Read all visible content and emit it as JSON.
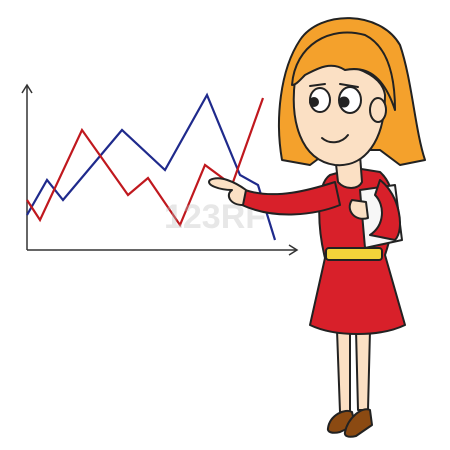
{
  "chart_data": {
    "type": "line",
    "xlim": [
      0,
      270
    ],
    "ylim": [
      0,
      165
    ],
    "series": [
      {
        "color": "#1f2a8c",
        "x": [
          0,
          20,
          36,
          95,
          138,
          180,
          213,
          231,
          248
        ],
        "values": [
          35,
          70,
          50,
          120,
          80,
          155,
          75,
          65,
          10
        ]
      },
      {
        "color": "#c0181e",
        "x": [
          0,
          13,
          55,
          101,
          121,
          153,
          178,
          205,
          236
        ],
        "values": [
          50,
          30,
          120,
          55,
          72,
          25,
          85,
          65,
          152
        ]
      }
    ]
  },
  "watermark": "123RF"
}
